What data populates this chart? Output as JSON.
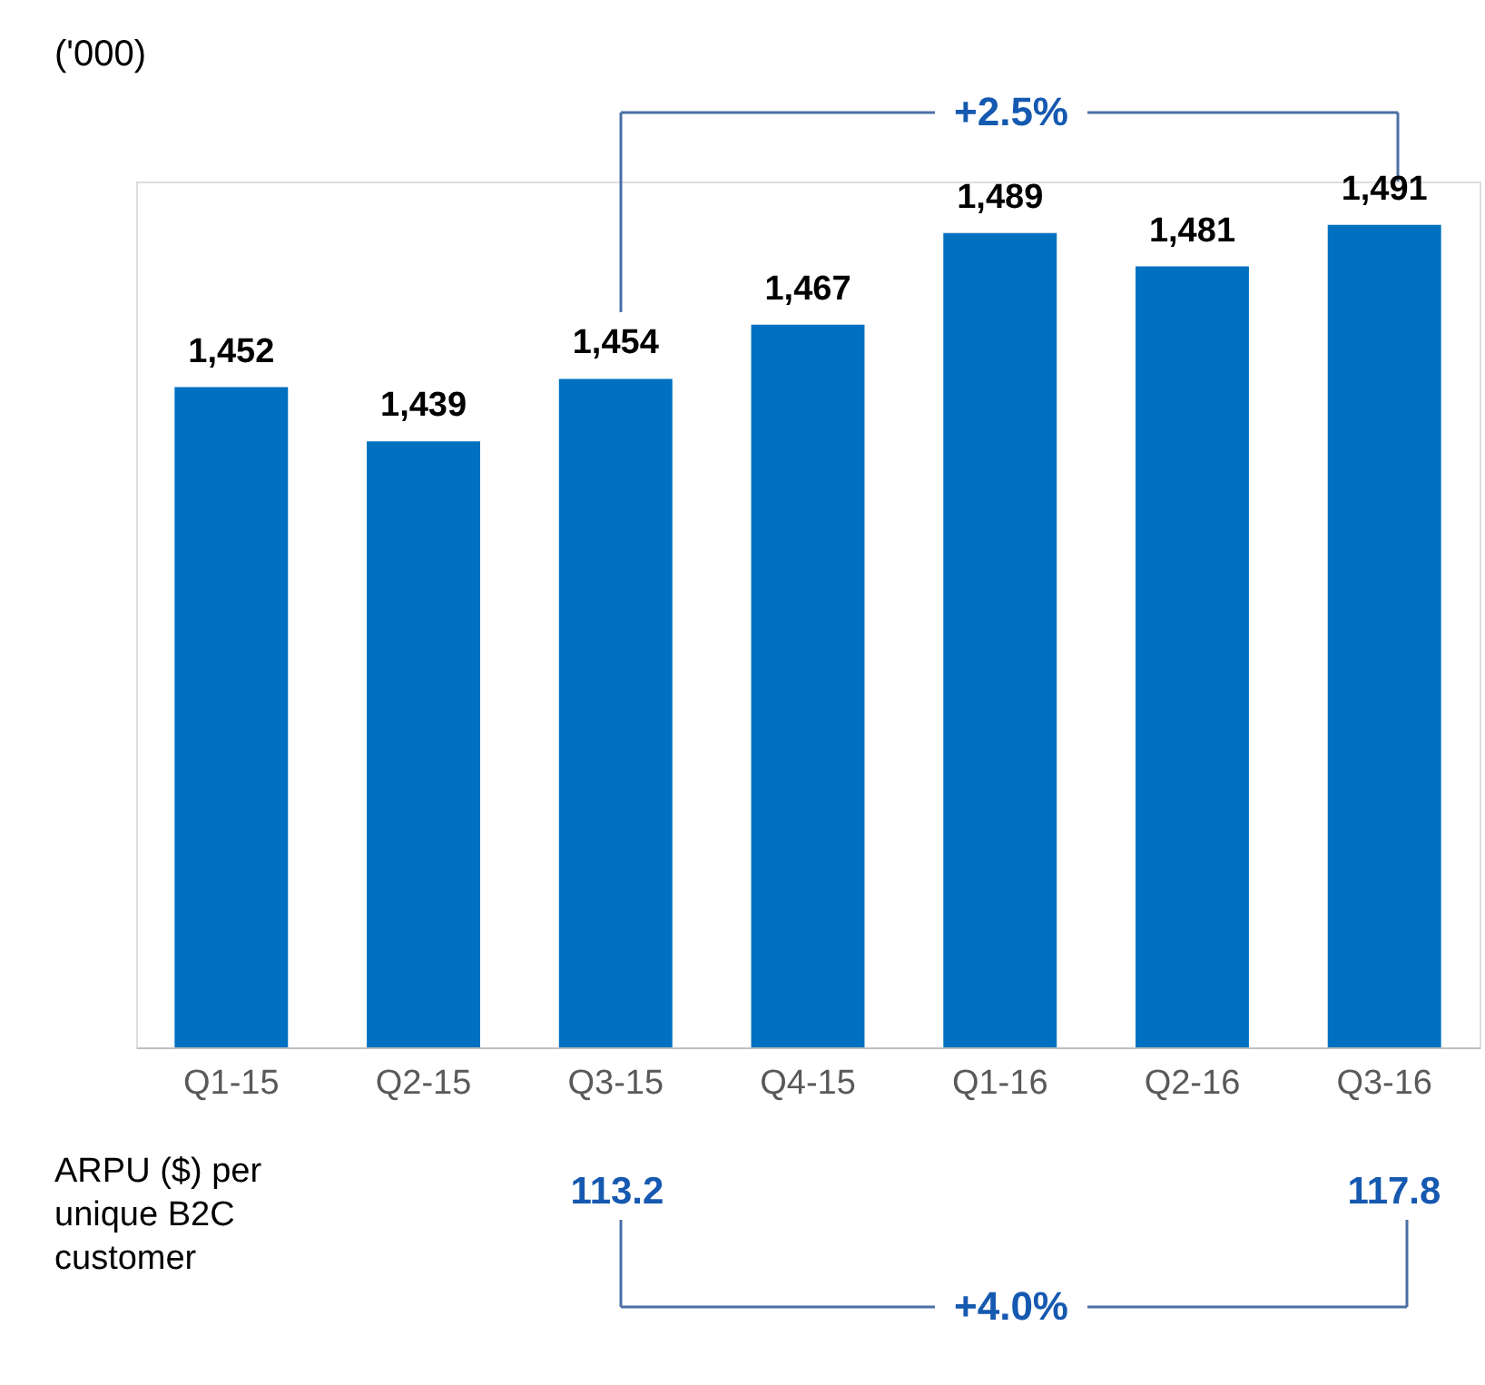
{
  "chart_data": {
    "type": "bar",
    "categories": [
      "Q1-15",
      "Q2-15",
      "Q3-15",
      "Q4-15",
      "Q1-16",
      "Q2-16",
      "Q3-16"
    ],
    "values": [
      1452,
      1439,
      1454,
      1467,
      1489,
      1481,
      1491
    ],
    "color": "#0070c0",
    "value_labels": [
      "1,452",
      "1,439",
      "1,454",
      "1,467",
      "1,489",
      "1,481",
      "1,491"
    ],
    "tick_labels": "x",
    "grid": false,
    "annotations": [
      "('000)",
      {
        "text": "+2.5%"
      },
      "ARPU ($) per unique B2C customer",
      "113.2",
      "117.8",
      "+4.0%"
    ]
  }
}
